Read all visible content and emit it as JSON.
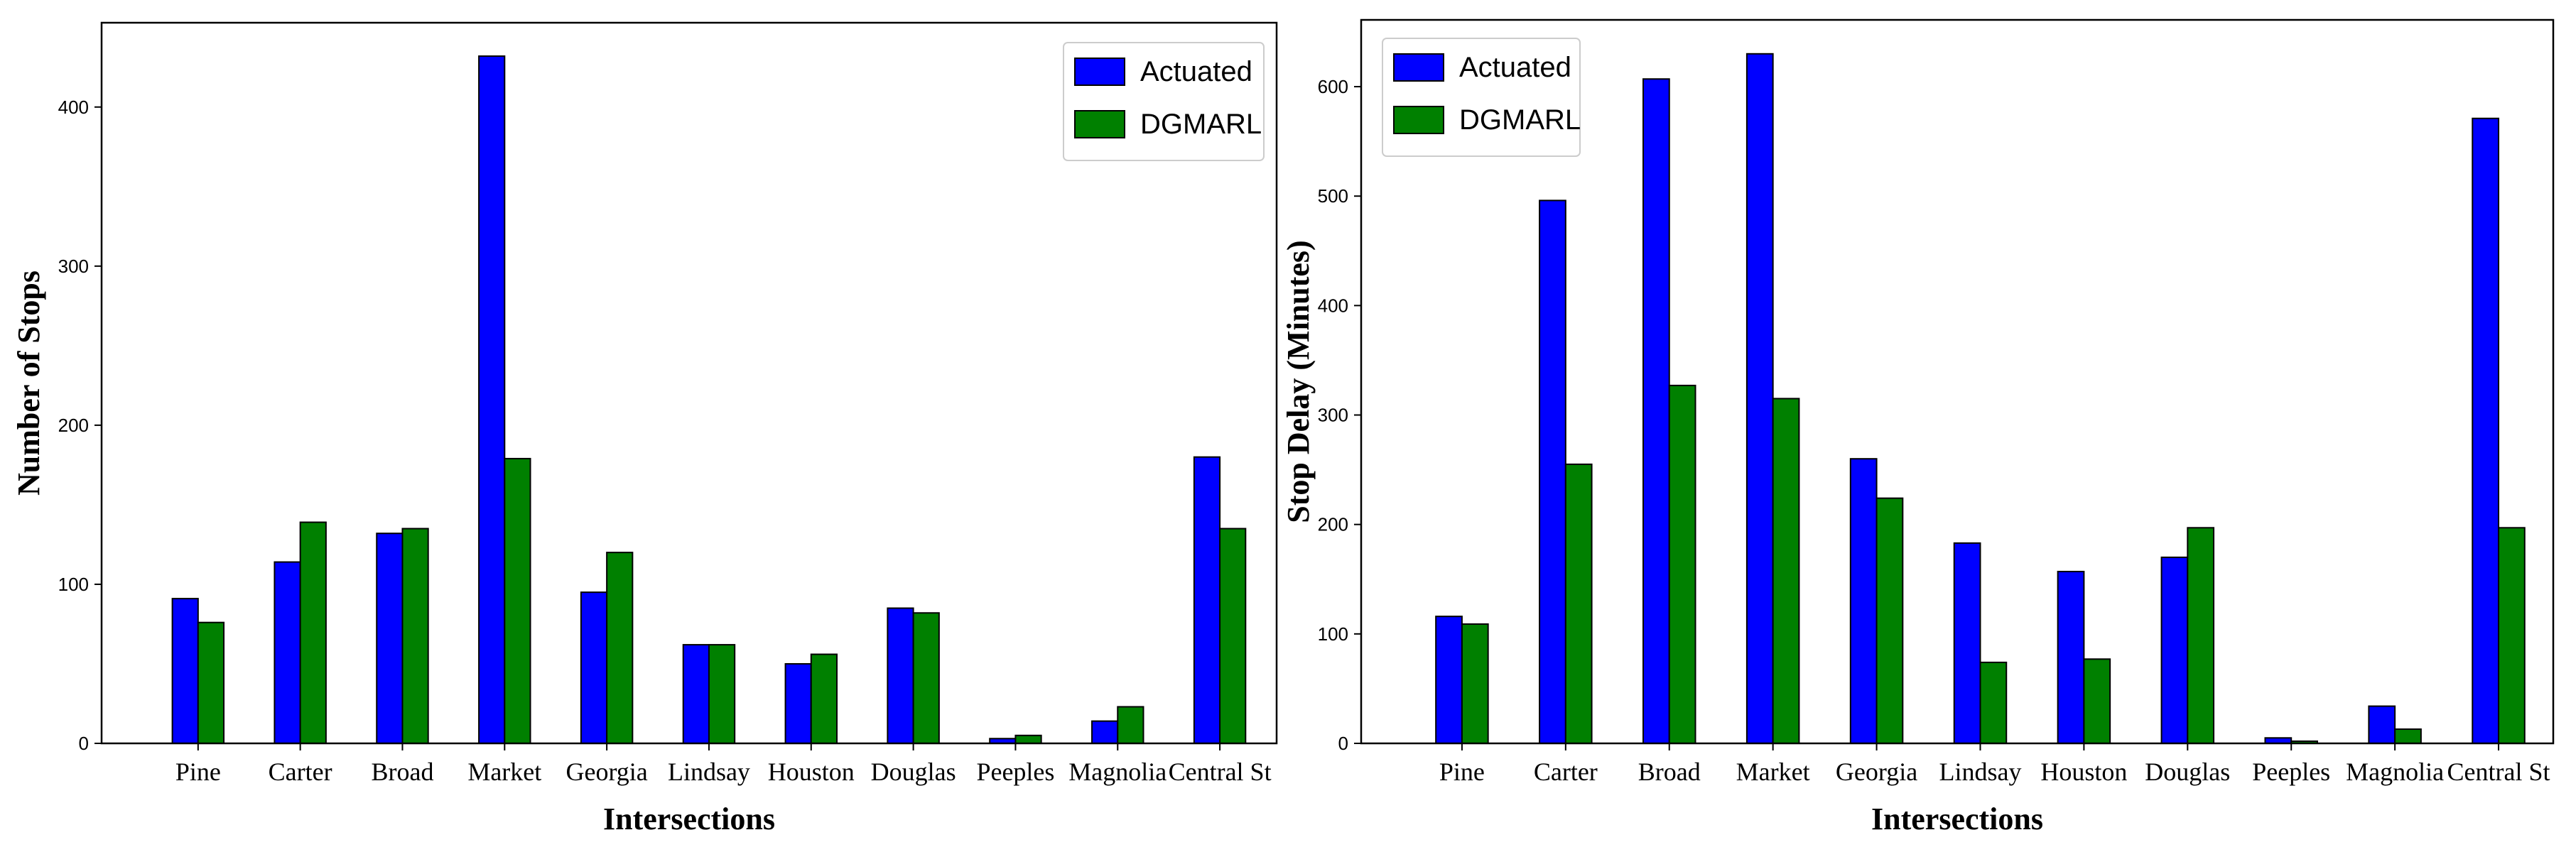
{
  "chart_data": [
    {
      "type": "bar",
      "categories": [
        "Pine",
        "Carter",
        "Broad",
        "Market",
        "Georgia",
        "Lindsay",
        "Houston",
        "Douglas",
        "Peeples",
        "Magnolia",
        "Central St"
      ],
      "series": [
        {
          "name": "Actuated",
          "color": "#0000ff",
          "values": [
            91,
            114,
            132,
            432,
            95,
            62,
            50,
            85,
            3,
            14,
            180
          ]
        },
        {
          "name": "DGMARL",
          "color": "#008000",
          "values": [
            76,
            139,
            135,
            179,
            120,
            62,
            56,
            82,
            5,
            23,
            135
          ]
        }
      ],
      "xlabel": "Intersections",
      "ylabel": "Number of Stops",
      "yticks": [
        0,
        100,
        200,
        300,
        400
      ],
      "ylim": [
        0,
        453
      ],
      "legend_position": "top-right"
    },
    {
      "type": "bar",
      "categories": [
        "Pine",
        "Carter",
        "Broad",
        "Market",
        "Georgia",
        "Lindsay",
        "Houston",
        "Douglas",
        "Peeples",
        "Magnolia",
        "Central St"
      ],
      "series": [
        {
          "name": "Actuated",
          "color": "#0000ff",
          "values": [
            116,
            496,
            607,
            630,
            260,
            183,
            157,
            170,
            5,
            34,
            571
          ]
        },
        {
          "name": "DGMARL",
          "color": "#008000",
          "values": [
            109,
            255,
            327,
            315,
            224,
            74,
            77,
            197,
            2,
            13,
            197
          ]
        }
      ],
      "xlabel": "Intersections",
      "ylabel": "Stop Delay (Minutes)",
      "yticks": [
        0,
        100,
        200,
        300,
        400,
        500,
        600
      ],
      "ylim": [
        0,
        661
      ],
      "legend_position": "top-left"
    }
  ]
}
